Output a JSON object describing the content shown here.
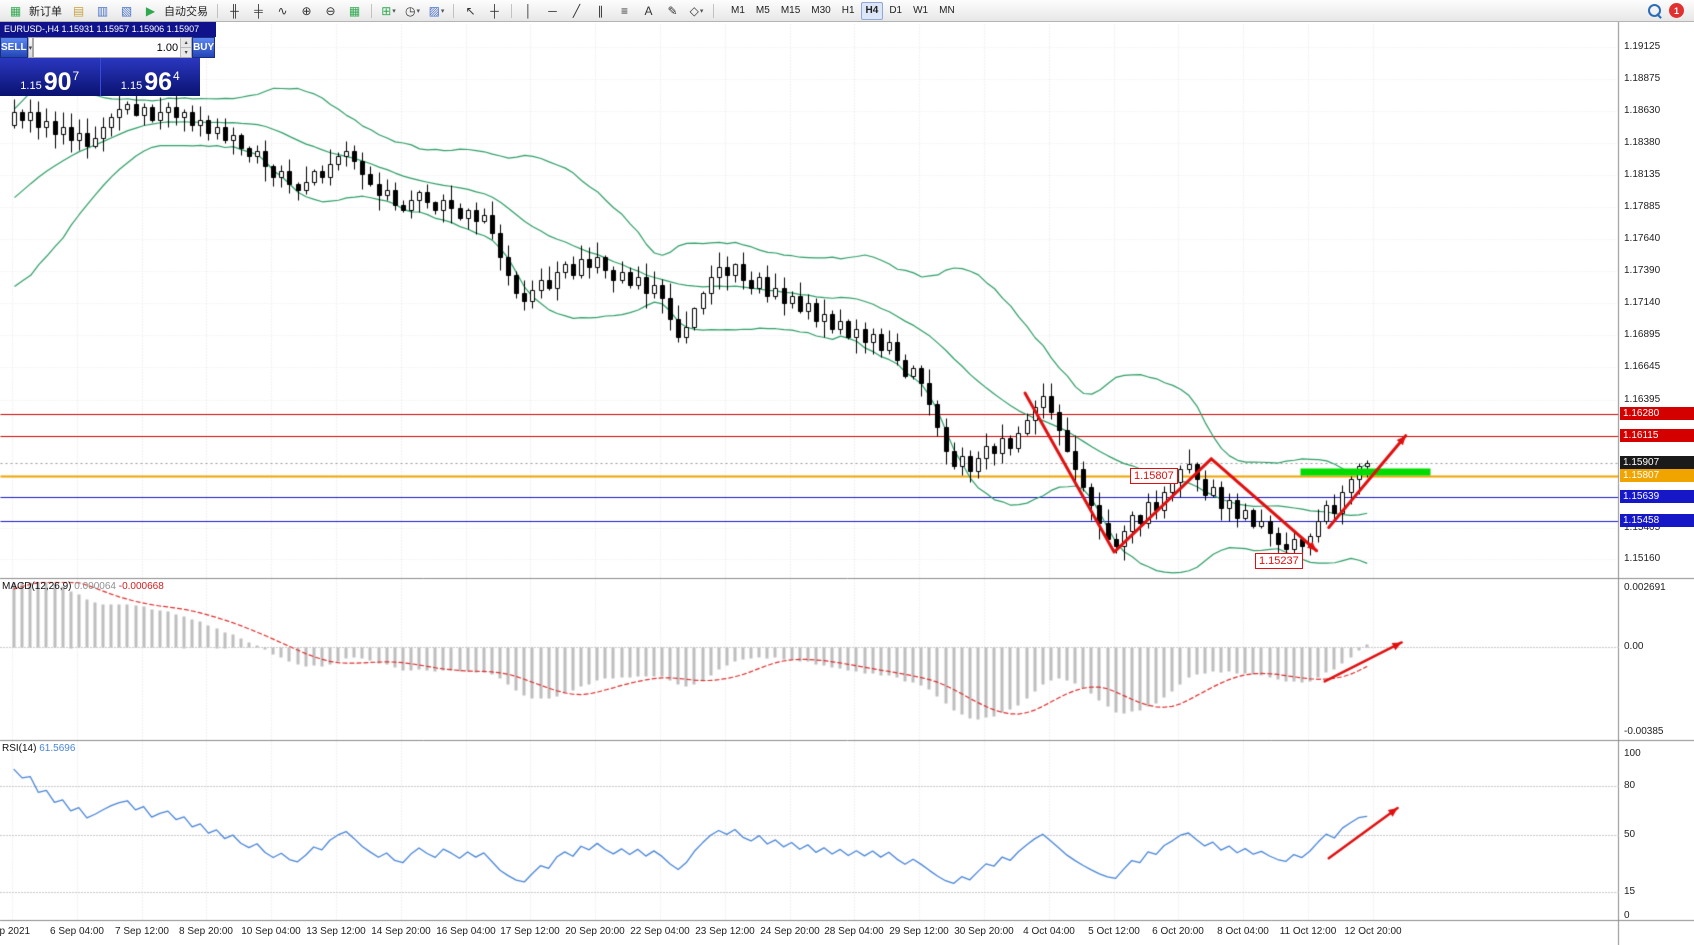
{
  "toolbar": {
    "items": [
      {
        "name": "new-order-icon",
        "glyph": "▦",
        "color": "#2FA84F",
        "label": "新订单"
      },
      {
        "name": "chart-window-icon",
        "glyph": "▤",
        "color": "#C8A23C"
      },
      {
        "name": "market-watch-icon",
        "glyph": "▥",
        "color": "#4A72C8"
      },
      {
        "name": "navigator-icon",
        "glyph": "▧",
        "color": "#4A72C8"
      },
      {
        "name": "autotrading-icon",
        "glyph": "▶",
        "color": "#2FA84F",
        "label": "自动交易"
      },
      {
        "sep": true
      },
      {
        "name": "bar-chart-icon",
        "glyph": "╫",
        "color": "#333333"
      },
      {
        "name": "candlestick-chart-icon",
        "glyph": "╪",
        "color": "#333333"
      },
      {
        "name": "line-chart-icon",
        "glyph": "∿",
        "color": "#333333"
      },
      {
        "name": "zoom-in-icon",
        "glyph": "⊕",
        "color": "#333333"
      },
      {
        "name": "zoom-out-icon",
        "glyph": "⊖",
        "color": "#333333"
      },
      {
        "name": "tile-windows-icon",
        "glyph": "▦",
        "color": "#2FA84F"
      },
      {
        "sep": true
      },
      {
        "name": "indicators-icon",
        "glyph": "⊞",
        "color": "#2FA84F",
        "dropdown": true
      },
      {
        "name": "periods-icon",
        "glyph": "◷",
        "color": "#333333",
        "dropdown": true
      },
      {
        "name": "templates-icon",
        "glyph": "▨",
        "color": "#4A72C8",
        "dropdown": true
      },
      {
        "sep": true
      },
      {
        "name": "cursor-icon",
        "glyph": "↖",
        "color": "#333333"
      },
      {
        "name": "crosshair-icon",
        "glyph": "┼",
        "color": "#333333"
      },
      {
        "sep": true
      },
      {
        "name": "vertical-line-icon",
        "glyph": "│",
        "color": "#333333"
      },
      {
        "name": "horizontal-line-icon",
        "glyph": "─",
        "color": "#333333"
      },
      {
        "name": "trendline-icon",
        "glyph": "╱",
        "color": "#333333"
      },
      {
        "name": "channel-icon",
        "glyph": "∥",
        "color": "#333333"
      },
      {
        "name": "fibonacci-icon",
        "glyph": "≡",
        "color": "#333333"
      },
      {
        "name": "text-icon",
        "glyph": "A",
        "color": "#333333"
      },
      {
        "name": "text-label-icon",
        "glyph": "✎",
        "color": "#333333"
      },
      {
        "name": "shapes-icon",
        "glyph": "◇",
        "color": "#333333",
        "dropdown": true
      },
      {
        "sep": true
      }
    ],
    "timeframes": [
      "M1",
      "M5",
      "M15",
      "M30",
      "H1",
      "H4",
      "D1",
      "W1",
      "MN"
    ],
    "active_timeframe": "H4",
    "notification_count": "1"
  },
  "chart_header": {
    "title": "EURUSD-,H4 1.15931 1.15957 1.15906 1.15907"
  },
  "trade_panel": {
    "sell_label": "SELL",
    "buy_label": "BUY",
    "volume": "1.00",
    "sell": {
      "prefix": "1.15",
      "big": "90",
      "sup": "7"
    },
    "buy": {
      "prefix": "1.15",
      "big": "96",
      "sup": "4"
    }
  },
  "price_axis": {
    "ticks": [
      "1.19125",
      "1.18875",
      "1.18630",
      "1.18380",
      "1.18135",
      "1.17885",
      "1.17640",
      "1.17390",
      "1.17140",
      "1.16895",
      "1.16645",
      "1.16395",
      "1.15405",
      "1.15160"
    ]
  },
  "levels": [
    {
      "label": "1.16280",
      "value": 1.1628,
      "bg": "#D40000",
      "line": "#D40000"
    },
    {
      "label": "1.16115",
      "value": 1.16115,
      "bg": "#D40000",
      "line": "#D40000"
    },
    {
      "label": "1.15907",
      "value": 1.15907,
      "bg": "#1A1A1A",
      "line": null
    },
    {
      "label": "1.15807",
      "value": 1.15807,
      "bg": "#F0A400",
      "line": "#F0A400"
    },
    {
      "label": "1.15639",
      "value": 1.15639,
      "bg": "#1618C8",
      "line": "#1618C8"
    },
    {
      "label": "1.15458",
      "value": 1.15458,
      "bg": "#1618C8",
      "line": "#1618C8"
    }
  ],
  "macd_panel": {
    "name": "MACD(12,26,9)",
    "value": "0.000064",
    "signal": "-0.000668",
    "ticks": [
      "0.002691",
      "0.00",
      "-0.00385"
    ]
  },
  "rsi_panel": {
    "name": "RSI(14)",
    "value": "61.5696",
    "ticks": [
      "100",
      "80",
      "50",
      "15",
      "0"
    ],
    "guide_levels": [
      80,
      50,
      15
    ]
  },
  "time_axis": {
    "labels": [
      "ep 2021",
      "6 Sep 04:00",
      "7 Sep 12:00",
      "8 Sep 20:00",
      "10 Sep 04:00",
      "13 Sep 12:00",
      "14 Sep 20:00",
      "16 Sep 04:00",
      "17 Sep 12:00",
      "20 Sep 20:00",
      "22 Sep 04:00",
      "23 Sep 12:00",
      "24 Sep 20:00",
      "28 Sep 04:00",
      "29 Sep 12:00",
      "30 Sep 20:00",
      "4 Oct 04:00",
      "5 Oct 12:00",
      "6 Oct 20:00",
      "8 Oct 04:00",
      "11 Oct 12:00",
      "12 Oct 20:00"
    ]
  },
  "annotations": {
    "swing_high_label": {
      "text": "1.15807",
      "bar": 138,
      "price": 1.15807
    },
    "swing_low_label": {
      "text": "1.15237",
      "bar": 153.5,
      "price": 1.15237
    },
    "green_zone": {
      "from_bar": 159,
      "to_bar": 175,
      "price": 1.15845,
      "color": "#00DC00"
    },
    "zigzag": [
      {
        "bar": 125,
        "price": 1.1645
      },
      {
        "bar": 136,
        "price": 1.1522
      },
      {
        "bar": 148,
        "price": 1.1594
      },
      {
        "bar": 161,
        "price": 1.1523
      }
    ],
    "price_arrow": {
      "from": {
        "bar": 162.5,
        "price": 1.1541
      },
      "to": {
        "bar": 172,
        "price": 1.1612
      }
    },
    "macd_arrow": {
      "from": {
        "bar": 162,
        "value": -0.00153
      },
      "to": {
        "bar": 171.5,
        "value": 0.00024
      }
    },
    "rsi_arrow": {
      "from": {
        "bar": 162.5,
        "value": 36
      },
      "to": {
        "bar": 171,
        "value": 67
      }
    }
  },
  "chart_data": {
    "type": "candlestick",
    "symbol": "EURUSD-",
    "timeframe": "H4",
    "quote": {
      "open": 1.15931,
      "high": 1.15957,
      "low": 1.15906,
      "close": 1.15907
    },
    "y_range": [
      1.1505,
      1.193
    ],
    "indicators": [
      {
        "name": "Bollinger Bands",
        "period": 20,
        "deviation": 2
      },
      {
        "name": "MACD",
        "fast": 12,
        "slow": 26,
        "signal": 9
      },
      {
        "name": "RSI",
        "period": 14
      }
    ],
    "preroll": [
      1.17,
      1.1706,
      1.17,
      1.1712,
      1.1718,
      1.1712,
      1.1724,
      1.173,
      1.1736,
      1.173,
      1.1742,
      1.1748,
      1.1754,
      1.1748,
      1.176,
      1.1766,
      1.1772,
      1.1766,
      1.1778,
      1.1784,
      1.179,
      1.1796,
      1.1802,
      1.1808,
      1.1814,
      1.182,
      1.1826,
      1.1834,
      1.1842,
      1.1852
    ],
    "closes": [
      1.1862,
      1.1856,
      1.1862,
      1.185,
      1.1855,
      1.1845,
      1.185,
      1.184,
      1.1846,
      1.1836,
      1.1842,
      1.185,
      1.1858,
      1.1864,
      1.1868,
      1.186,
      1.1866,
      1.1856,
      1.1862,
      1.1866,
      1.1858,
      1.1862,
      1.1852,
      1.1856,
      1.1846,
      1.185,
      1.184,
      1.1844,
      1.1834,
      1.1828,
      1.1832,
      1.182,
      1.1812,
      1.1816,
      1.1806,
      1.1802,
      1.1808,
      1.1816,
      1.1812,
      1.1822,
      1.1828,
      1.1832,
      1.1824,
      1.1814,
      1.1806,
      1.1798,
      1.1802,
      1.179,
      1.1786,
      1.1794,
      1.18,
      1.1792,
      1.1786,
      1.1794,
      1.1788,
      1.178,
      1.1786,
      1.1778,
      1.1782,
      1.1768,
      1.175,
      1.1736,
      1.1722,
      1.1716,
      1.1724,
      1.1732,
      1.1726,
      1.1738,
      1.1744,
      1.1736,
      1.1748,
      1.1742,
      1.175,
      1.174,
      1.1732,
      1.1738,
      1.1728,
      1.1734,
      1.1722,
      1.1728,
      1.1718,
      1.1702,
      1.1688,
      1.1696,
      1.171,
      1.1722,
      1.1734,
      1.1742,
      1.1736,
      1.1744,
      1.1732,
      1.1726,
      1.1734,
      1.172,
      1.1726,
      1.1714,
      1.172,
      1.1708,
      1.1714,
      1.17,
      1.1706,
      1.1694,
      1.17,
      1.1688,
      1.1694,
      1.1684,
      1.169,
      1.1678,
      1.1684,
      1.167,
      1.1658,
      1.1664,
      1.1652,
      1.1636,
      1.1618,
      1.16,
      1.1588,
      1.1596,
      1.1584,
      1.1594,
      1.1604,
      1.1598,
      1.161,
      1.1602,
      1.1614,
      1.1624,
      1.1634,
      1.1642,
      1.163,
      1.1616,
      1.16,
      1.1586,
      1.1572,
      1.1558,
      1.1544,
      1.1532,
      1.1526,
      1.1538,
      1.155,
      1.1544,
      1.156,
      1.1554,
      1.1568,
      1.1576,
      1.1586,
      1.159,
      1.1578,
      1.1566,
      1.1572,
      1.1556,
      1.1562,
      1.1548,
      1.1554,
      1.1542,
      1.1546,
      1.1536,
      1.1528,
      1.15237,
      1.1532,
      1.1526,
      1.1534,
      1.1546,
      1.1558,
      1.1552,
      1.1568,
      1.1578,
      1.1588,
      1.15907
    ]
  },
  "colors": {
    "bollinger": "#2F9E68",
    "candle_up": "#FFFFFF",
    "candle_down": "#000000",
    "macd_hist": "#BEBEBE",
    "macd_signal": "#E03030",
    "rsi_line": "#4A86D8",
    "trend": "#E01010",
    "level_orange": "#F0A400",
    "green_zone": "#00DC00"
  }
}
